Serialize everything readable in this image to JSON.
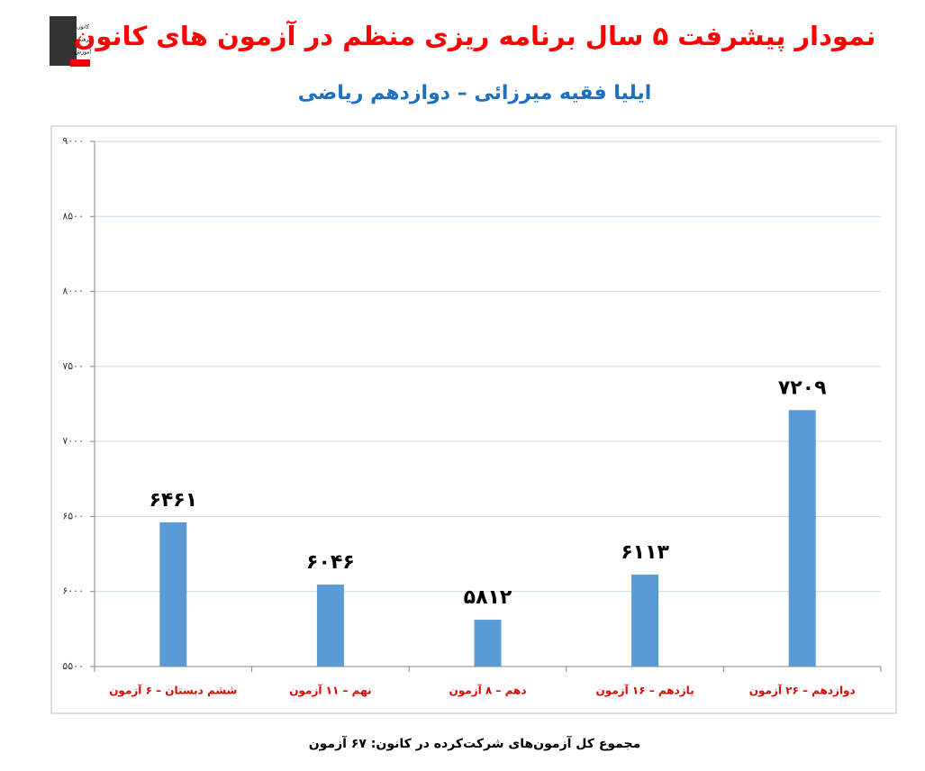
{
  "chart_data": {
    "type": "bar",
    "title": "نمودار پیشرفت ۵ سال برنامه ریزی منظم در آزمون های کانون",
    "subtitle": "ایلیا فقیه میرزائی – دوازدهم ریاضی",
    "logo": [
      "کانون",
      "فرهنگی",
      "آموزش"
    ],
    "categories": [
      "ششم دبستان – ۶ آزمون",
      "نهم – ۱۱ آزمون",
      "دهم – ۸ آزمون",
      "یازدهم – ۱۶ آزمون",
      "دوازدهم – ۲۶ آزمون"
    ],
    "values": [
      6461,
      6046,
      5812,
      6113,
      7209
    ],
    "value_labels": [
      "۶۴۶۱",
      "۶۰۴۶",
      "۵۸۱۲",
      "۶۱۱۳",
      "۷۲۰۹"
    ],
    "color": "#5b9bd5",
    "ylim": [
      5500,
      9000
    ],
    "yticks": [
      {
        "value": 5500,
        "label": "۵۵۰۰"
      },
      {
        "value": 6000,
        "label": "۶۰۰۰"
      },
      {
        "value": 6500,
        "label": "۶۵۰۰"
      },
      {
        "value": 7000,
        "label": "۷۰۰۰"
      },
      {
        "value": 7500,
        "label": "۷۵۰۰"
      },
      {
        "value": 8000,
        "label": "۸۰۰۰"
      },
      {
        "value": 8500,
        "label": "۸۵۰۰"
      },
      {
        "value": 9000,
        "label": "۹۰۰۰"
      }
    ],
    "grid": true,
    "footer": "مجموع کل آزمون‌های شرکت‌کرده در کانون: ۶۷ آزمون"
  }
}
